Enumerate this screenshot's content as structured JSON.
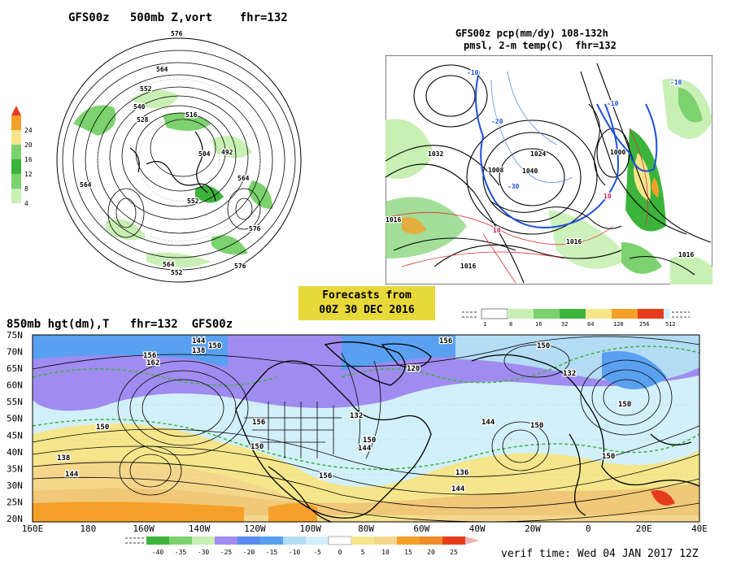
{
  "panel_500mb": {
    "title": "GFS00z   500mb Z,vort    fhr=132",
    "colorbar": [
      "4",
      "8",
      "12",
      "16",
      "20",
      "24"
    ],
    "labels": [
      "576",
      "564",
      "552",
      "540",
      "528",
      "516",
      "504",
      "492",
      "552",
      "564",
      "576",
      "564",
      "552",
      "576",
      "564"
    ]
  },
  "panel_precip": {
    "title_line1": "GFS00z pcp(mm/dy) 108-132h",
    "title_line2": "pmsl, 2-m temp(C)  fhr=132",
    "colorbar": [
      "1",
      "8",
      "16",
      "32",
      "64",
      "128",
      "256",
      "512"
    ],
    "pressure_labels": [
      "1032",
      "1016",
      "1024",
      "1040",
      "1008",
      "1016",
      "1016",
      "1016",
      "1000"
    ],
    "temp_labels": [
      "-10",
      "-20",
      "-30",
      "-10",
      "10",
      "10",
      "-10"
    ]
  },
  "forecast_box": {
    "line1": "Forecasts from",
    "line2": "00Z 30 DEC 2016"
  },
  "panel_850mb": {
    "title": "850mb hgt(dm),T   fhr=132  GFS00z",
    "lat_labels": [
      "75N",
      "70N",
      "65N",
      "60N",
      "55N",
      "50N",
      "45N",
      "40N",
      "35N",
      "30N",
      "25N",
      "20N"
    ],
    "lon_labels": [
      "160E",
      "180",
      "160W",
      "140W",
      "120W",
      "100W",
      "80W",
      "60W",
      "40W",
      "20W",
      "0",
      "20E",
      "40E"
    ],
    "contour_labels": [
      "156",
      "162",
      "144",
      "138",
      "150",
      "132",
      "144",
      "150",
      "156",
      "150",
      "144",
      "138",
      "120",
      "156",
      "150",
      "132",
      "150",
      "144",
      "150",
      "136",
      "144",
      "150",
      "156",
      "150"
    ],
    "colorbar": [
      "-40",
      "-35",
      "-30",
      "-25",
      "-20",
      "-15",
      "-10",
      "-5",
      "0",
      "5",
      "10",
      "15",
      "20",
      "25"
    ]
  },
  "verif": "verif time: Wed 04 JAN 2017 12Z",
  "colors": {
    "green_light": "#c8f0b4",
    "green": "#7cd26e",
    "green_dark": "#3cb43c",
    "yellow": "#f5e68c",
    "orange": "#f5a028",
    "red": "#e63c1e",
    "purple": "#a08cf0",
    "blue": "#5aa0f0",
    "lightblue": "#b4dcf5",
    "cyan_light": "#d2f0fa",
    "sand": "#f5d78c",
    "tan": "#f0c878",
    "highlight": "#e8d93a"
  }
}
